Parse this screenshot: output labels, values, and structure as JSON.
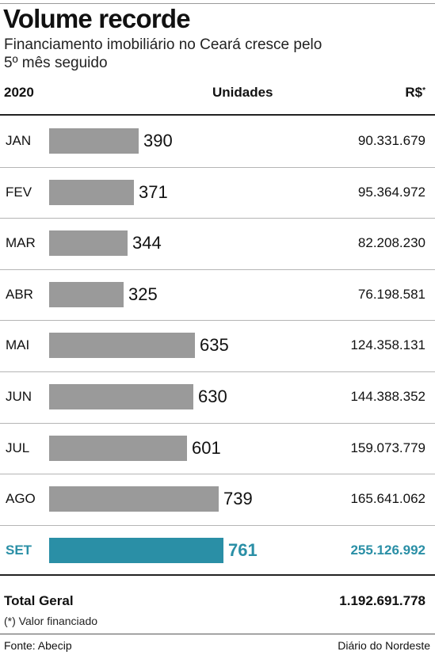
{
  "title": "Volume recorde",
  "subtitle": "Financiamento imobiliário no Ceará cresce pelo 5º mês seguido",
  "header": {
    "year": "2020",
    "units": "Unidades",
    "value": "R$",
    "value_mark": "*"
  },
  "chart_data": {
    "type": "bar",
    "title": "Volume recorde",
    "subtitle": "Financiamento imobiliário no Ceará cresce pelo 5º mês seguido",
    "categories": [
      "JAN",
      "FEV",
      "MAR",
      "ABR",
      "MAI",
      "JUN",
      "JUL",
      "AGO",
      "SET"
    ],
    "values": [
      390,
      371,
      344,
      325,
      635,
      630,
      601,
      739,
      761
    ],
    "value_labels": [
      "390",
      "371",
      "344",
      "325",
      "635",
      "630",
      "601",
      "739",
      "761"
    ],
    "amounts": [
      "90.331.679",
      "95.364.972",
      "82.208.230",
      "76.198.581",
      "124.358.131",
      "144.388.352",
      "159.073.779",
      "165.641.062",
      "255.126.992"
    ],
    "highlight_index": 8,
    "orientation": "horizontal",
    "bar_color": "#9a9a9a",
    "highlight_color": "#2a8fa6",
    "grid": false,
    "legend": "none"
  },
  "total": {
    "label": "Total Geral",
    "value": "1.192.691.778"
  },
  "note": "(*) Valor financiado",
  "source": "Fonte: Abecip",
  "brand": "Diário do Nordeste"
}
